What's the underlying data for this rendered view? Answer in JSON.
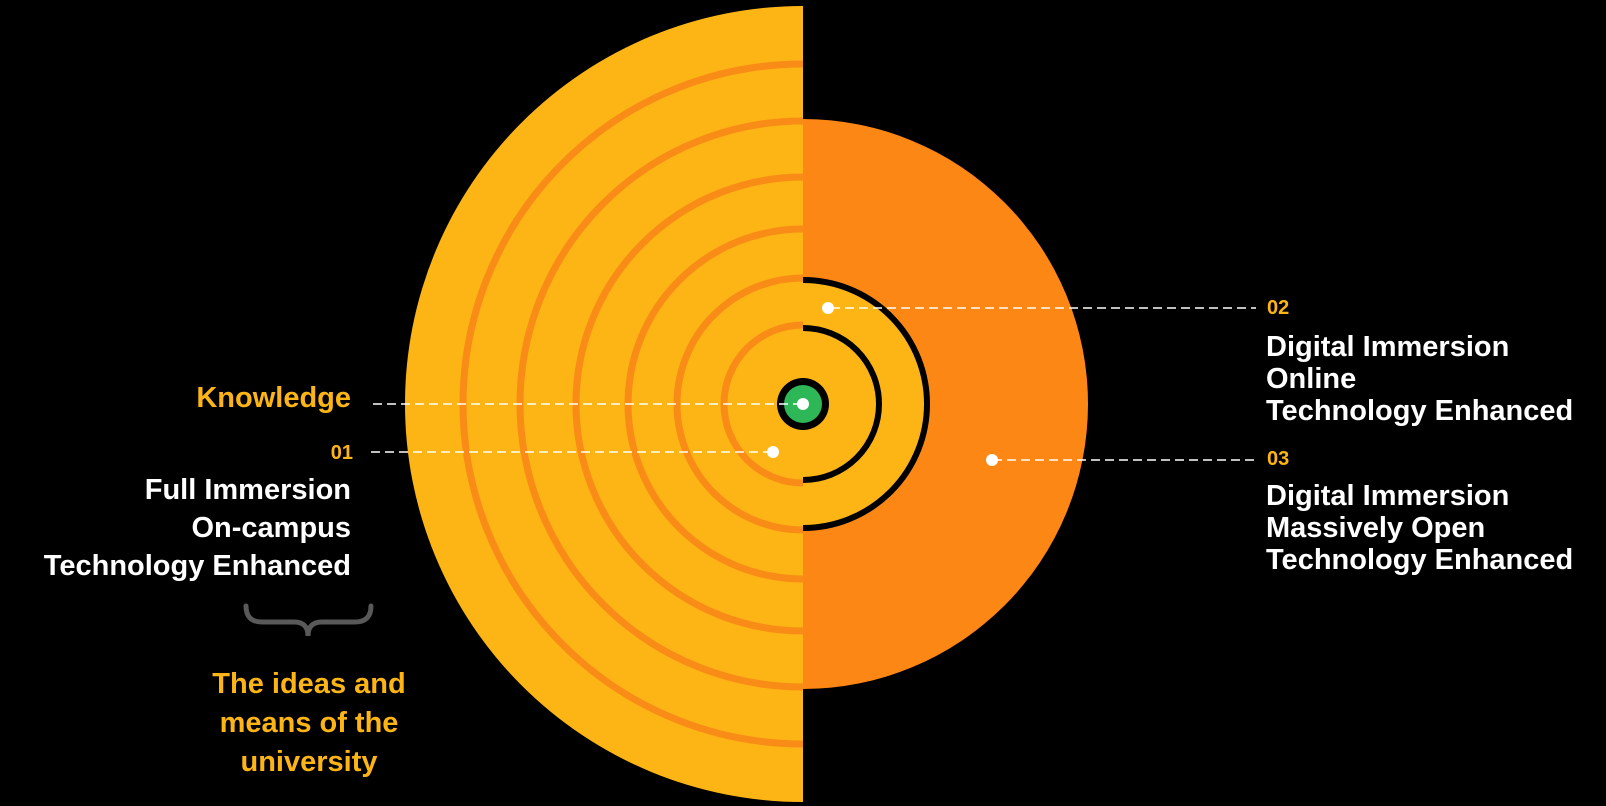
{
  "colors": {
    "background": "#000000",
    "yellow": "#FDB515",
    "orange": "#FD8715",
    "ring_orange": "#F98C17",
    "black_ring": "#000000",
    "center_green": "#2DB757",
    "white": "#FFFFFF",
    "brace_grey": "#595959"
  },
  "labels": {
    "knowledge": "Knowledge",
    "item1": {
      "number": "01",
      "lines": [
        "Full Immersion",
        "On-campus",
        "Technology Enhanced"
      ]
    },
    "item2": {
      "number": "02",
      "lines": [
        "Digital Immersion",
        "Online",
        "Technology Enhanced"
      ]
    },
    "item3": {
      "number": "03",
      "lines": [
        "Digital Immersion",
        "Massively Open",
        "Technology Enhanced"
      ]
    },
    "caption": [
      "The ideas and",
      "means of the",
      "university"
    ]
  }
}
